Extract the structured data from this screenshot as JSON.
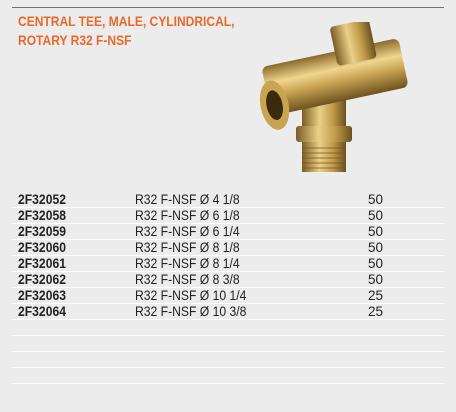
{
  "header": {
    "title_lines": [
      "CENTRAL TEE, MALE, CYLINDRICAL,",
      "ROTARY R32 F-NSF"
    ]
  },
  "table": {
    "rows": [
      [
        "2F32052",
        "R32 F-NSF Ø 4 1/8",
        50
      ],
      [
        "2F32058",
        "R32 F-NSF Ø 6 1/8",
        50
      ],
      [
        "2F32059",
        "R32 F-NSF Ø 6 1/4",
        50
      ],
      [
        "2F32060",
        "R32 F-NSF Ø 8 1/8",
        50
      ],
      [
        "2F32061",
        "R32 F-NSF Ø 8 1/4",
        50
      ],
      [
        "2F32062",
        "R32 F-NSF Ø 8 3/8",
        50
      ],
      [
        "2F32063",
        "R32 F-NSF Ø 10 1/4",
        25
      ],
      [
        "2F32064",
        "R32 F-NSF Ø 10 3/8",
        25
      ]
    ]
  }
}
